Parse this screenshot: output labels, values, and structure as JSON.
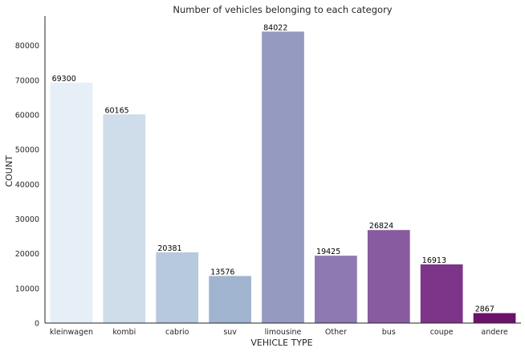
{
  "chart_data": {
    "type": "bar",
    "title": "Number of vehicles belonging to each category",
    "xlabel": "VEHICLE TYPE",
    "ylabel": "COUNT",
    "categories": [
      "kleinwagen",
      "kombi",
      "cabrio",
      "suv",
      "limousine",
      "Other",
      "bus",
      "coupe",
      "andere"
    ],
    "values": [
      69300,
      60165,
      20381,
      13576,
      84022,
      19425,
      26824,
      16913,
      2867
    ],
    "data_labels": [
      "69300",
      "60165",
      "20381",
      "13576",
      "84022",
      "19425",
      "26824",
      "16913",
      "2867"
    ],
    "colors": [
      "#e6eef7",
      "#cfdce9",
      "#b6c9dd",
      "#a0b4cf",
      "#959bc0",
      "#8e79b2",
      "#885ba0",
      "#7c3588",
      "#6b1369"
    ],
    "yticks": [
      0,
      10000,
      20000,
      30000,
      40000,
      50000,
      60000,
      70000,
      80000
    ],
    "ytick_labels": [
      "0",
      "10000",
      "20000",
      "30000",
      "40000",
      "50000",
      "60000",
      "70000",
      "80000"
    ],
    "ylim": [
      0,
      88500
    ],
    "grid": false,
    "legend": "none"
  }
}
